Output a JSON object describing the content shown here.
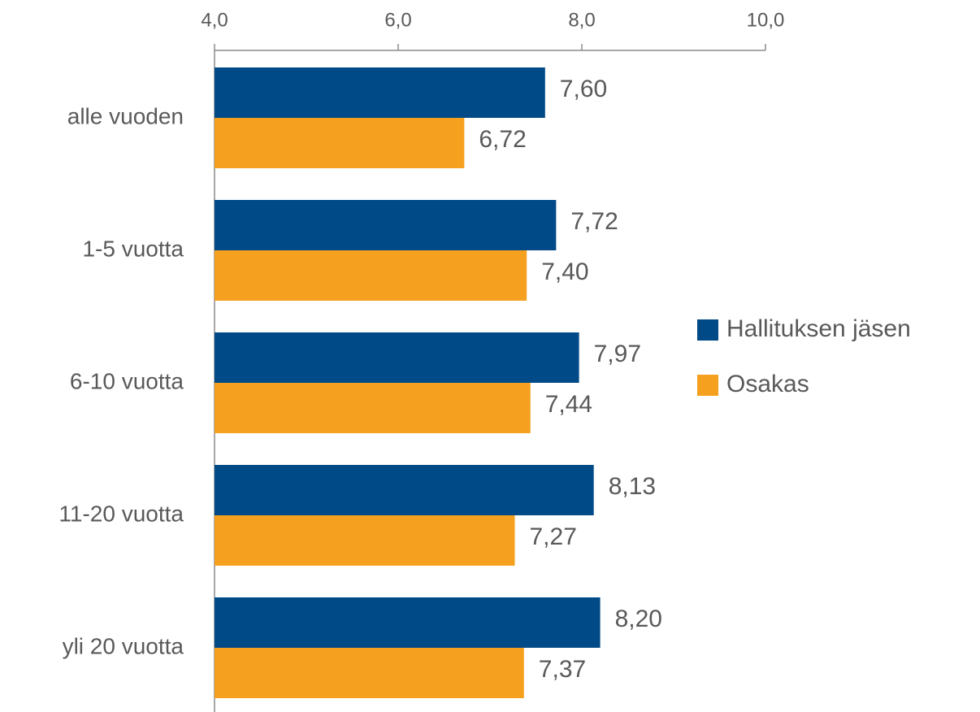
{
  "chart_data": {
    "type": "bar",
    "orientation": "horizontal",
    "categories": [
      "alle vuoden",
      "1-5 vuotta",
      "6-10 vuotta",
      "11-20 vuotta",
      "yli 20 vuotta"
    ],
    "series": [
      {
        "name": "Hallituksen jäsen",
        "color": "#004a87",
        "values": [
          7.6,
          7.72,
          7.97,
          8.13,
          8.2
        ],
        "value_labels": [
          "7,60",
          "7,72",
          "7,97",
          "8,13",
          "8,20"
        ]
      },
      {
        "name": "Osakas",
        "color": "#f5a01f",
        "values": [
          6.72,
          7.4,
          7.44,
          7.27,
          7.37
        ],
        "value_labels": [
          "6,72",
          "7,40",
          "7,44",
          "7,27",
          "7,37"
        ]
      }
    ],
    "xlim": [
      4,
      10
    ],
    "xticks": [
      {
        "value": 4,
        "label": "4,0"
      },
      {
        "value": 6,
        "label": "6,0"
      },
      {
        "value": 8,
        "label": "8,0"
      },
      {
        "value": 10,
        "label": "10,0"
      }
    ],
    "legend": "right"
  }
}
